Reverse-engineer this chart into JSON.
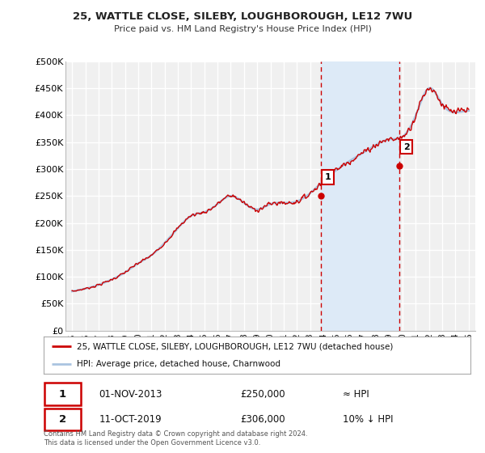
{
  "title_line1": "25, WATTLE CLOSE, SILEBY, LOUGHBOROUGH, LE12 7WU",
  "title_line2": "Price paid vs. HM Land Registry's House Price Index (HPI)",
  "ylabel_ticks": [
    "£0",
    "£50K",
    "£100K",
    "£150K",
    "£200K",
    "£250K",
    "£300K",
    "£350K",
    "£400K",
    "£450K",
    "£500K"
  ],
  "ytick_values": [
    0,
    50000,
    100000,
    150000,
    200000,
    250000,
    300000,
    350000,
    400000,
    450000,
    500000
  ],
  "ylim": [
    0,
    500000
  ],
  "xlim_start": 1994.5,
  "xlim_end": 2025.5,
  "xticks": [
    1995,
    1996,
    1997,
    1998,
    1999,
    2000,
    2001,
    2002,
    2003,
    2004,
    2005,
    2006,
    2007,
    2008,
    2009,
    2010,
    2011,
    2012,
    2013,
    2014,
    2015,
    2016,
    2017,
    2018,
    2019,
    2020,
    2021,
    2022,
    2023,
    2024,
    2025
  ],
  "hpi_color": "#aac4e0",
  "price_color": "#cc0000",
  "vline_color": "#cc0000",
  "shaded_region_color": "#ddeaf7",
  "purchase1_year": 2013.83,
  "purchase1_price": 250000,
  "purchase1_label": "1",
  "purchase1_date": "01-NOV-2013",
  "purchase1_relation": "≈ HPI",
  "purchase2_year": 2019.78,
  "purchase2_price": 306000,
  "purchase2_label": "2",
  "purchase2_date": "11-OCT-2019",
  "purchase2_relation": "10% ↓ HPI",
  "legend_label1": "25, WATTLE CLOSE, SILEBY, LOUGHBOROUGH, LE12 7WU (detached house)",
  "legend_label2": "HPI: Average price, detached house, Charnwood",
  "footer_line1": "Contains HM Land Registry data © Crown copyright and database right 2024.",
  "footer_line2": "This data is licensed under the Open Government Licence v3.0.",
  "background_color": "#ffffff",
  "plot_bg_color": "#f0f0f0",
  "grid_color": "#ffffff",
  "hpi_years": [
    1995,
    1996,
    1997,
    1998,
    1999,
    2000,
    2001,
    2002,
    2003,
    2004,
    2005,
    2006,
    2007,
    2008,
    2009,
    2010,
    2011,
    2012,
    2013,
    2014,
    2015,
    2016,
    2017,
    2018,
    2019,
    2020,
    2021,
    2022,
    2023,
    2024,
    2025
  ],
  "hpi_values": [
    73000,
    78000,
    85000,
    95000,
    108000,
    125000,
    140000,
    163000,
    190000,
    213000,
    220000,
    235000,
    250000,
    237000,
    225000,
    235000,
    237000,
    240000,
    255000,
    278000,
    298000,
    315000,
    330000,
    345000,
    355000,
    360000,
    400000,
    450000,
    420000,
    405000,
    408000
  ]
}
